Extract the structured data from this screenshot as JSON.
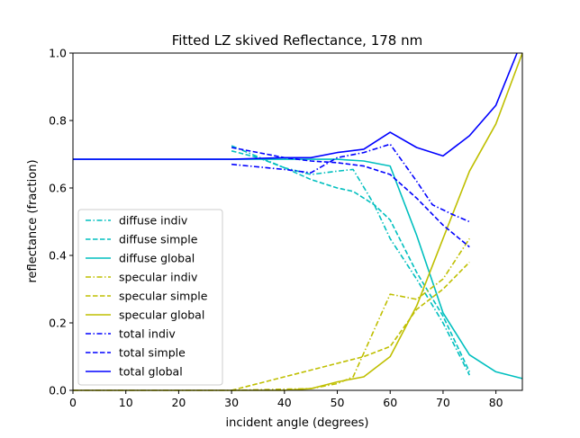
{
  "chart_data": {
    "type": "line",
    "title": "Fitted LZ skived Reflectance, 178 nm",
    "xlabel": "incident angle (degrees)",
    "ylabel": "reflectance (fraction)",
    "xlim": [
      0,
      85
    ],
    "ylim": [
      0,
      1.0
    ],
    "xticks": [
      0,
      10,
      20,
      30,
      40,
      50,
      60,
      70,
      80
    ],
    "yticks": [
      0.0,
      0.2,
      0.4,
      0.6,
      0.8,
      1.0
    ],
    "xtick_labels": [
      "0",
      "10",
      "20",
      "30",
      "40",
      "50",
      "60",
      "70",
      "80"
    ],
    "ytick_labels": [
      "0.0",
      "0.2",
      "0.4",
      "0.6",
      "0.8",
      "1.0"
    ],
    "grid": false,
    "legend_position": "lower-left",
    "series": [
      {
        "name": "diffuse indiv",
        "color": "#00bfbf",
        "dash": "dashdot",
        "x": [
          30,
          40,
          45,
          50,
          53,
          57,
          60,
          65,
          70,
          75
        ],
        "y": [
          0.725,
          0.66,
          0.64,
          0.65,
          0.655,
          0.55,
          0.45,
          0.33,
          0.2,
          0.045
        ]
      },
      {
        "name": "diffuse simple",
        "color": "#00bfbf",
        "dash": "dashed",
        "x": [
          30,
          35,
          40,
          45,
          50,
          53,
          57,
          60,
          65,
          70,
          75
        ],
        "y": [
          0.71,
          0.69,
          0.66,
          0.625,
          0.6,
          0.59,
          0.55,
          0.505,
          0.35,
          0.22,
          0.055
        ]
      },
      {
        "name": "diffuse global",
        "color": "#00bfbf",
        "dash": "solid",
        "x": [
          0,
          30,
          40,
          45,
          50,
          55,
          60,
          65,
          70,
          75,
          80,
          85
        ],
        "y": [
          0.685,
          0.685,
          0.685,
          0.685,
          0.685,
          0.68,
          0.665,
          0.46,
          0.23,
          0.105,
          0.055,
          0.035
        ]
      },
      {
        "name": "specular indiv",
        "color": "#bfbf00",
        "dash": "dashdot",
        "x": [
          0,
          30,
          45,
          50,
          53,
          57,
          60,
          65,
          70,
          75
        ],
        "y": [
          0.0,
          0.0,
          0.005,
          0.02,
          0.04,
          0.18,
          0.285,
          0.27,
          0.33,
          0.45
        ]
      },
      {
        "name": "specular simple",
        "color": "#bfbf00",
        "dash": "dashed",
        "x": [
          30,
          35,
          40,
          45,
          50,
          55,
          60,
          65,
          70,
          75
        ],
        "y": [
          0.0,
          0.02,
          0.04,
          0.06,
          0.08,
          0.1,
          0.13,
          0.24,
          0.3,
          0.38
        ]
      },
      {
        "name": "specular global",
        "color": "#bfbf00",
        "dash": "solid",
        "x": [
          0,
          40,
          45,
          50,
          55,
          60,
          65,
          70,
          75,
          80,
          85
        ],
        "y": [
          0.0,
          0.0,
          0.005,
          0.025,
          0.04,
          0.1,
          0.25,
          0.45,
          0.65,
          0.79,
          1.0
        ]
      },
      {
        "name": "total indiv",
        "color": "#0000ff",
        "dash": "dashdot",
        "x": [
          30,
          40,
          45,
          50,
          55,
          60,
          65,
          68,
          72,
          75
        ],
        "y": [
          0.67,
          0.655,
          0.645,
          0.69,
          0.705,
          0.73,
          0.62,
          0.55,
          0.52,
          0.5
        ]
      },
      {
        "name": "total simple",
        "color": "#0000ff",
        "dash": "dashed",
        "x": [
          30,
          35,
          40,
          45,
          50,
          55,
          60,
          65,
          70,
          75
        ],
        "y": [
          0.72,
          0.705,
          0.69,
          0.68,
          0.675,
          0.665,
          0.64,
          0.57,
          0.49,
          0.425
        ]
      },
      {
        "name": "total global",
        "color": "#0000ff",
        "dash": "solid",
        "x": [
          0,
          30,
          40,
          45,
          50,
          55,
          60,
          65,
          70,
          75,
          80,
          84
        ],
        "y": [
          0.685,
          0.685,
          0.69,
          0.69,
          0.705,
          0.715,
          0.765,
          0.72,
          0.695,
          0.755,
          0.845,
          1.0
        ]
      }
    ]
  }
}
